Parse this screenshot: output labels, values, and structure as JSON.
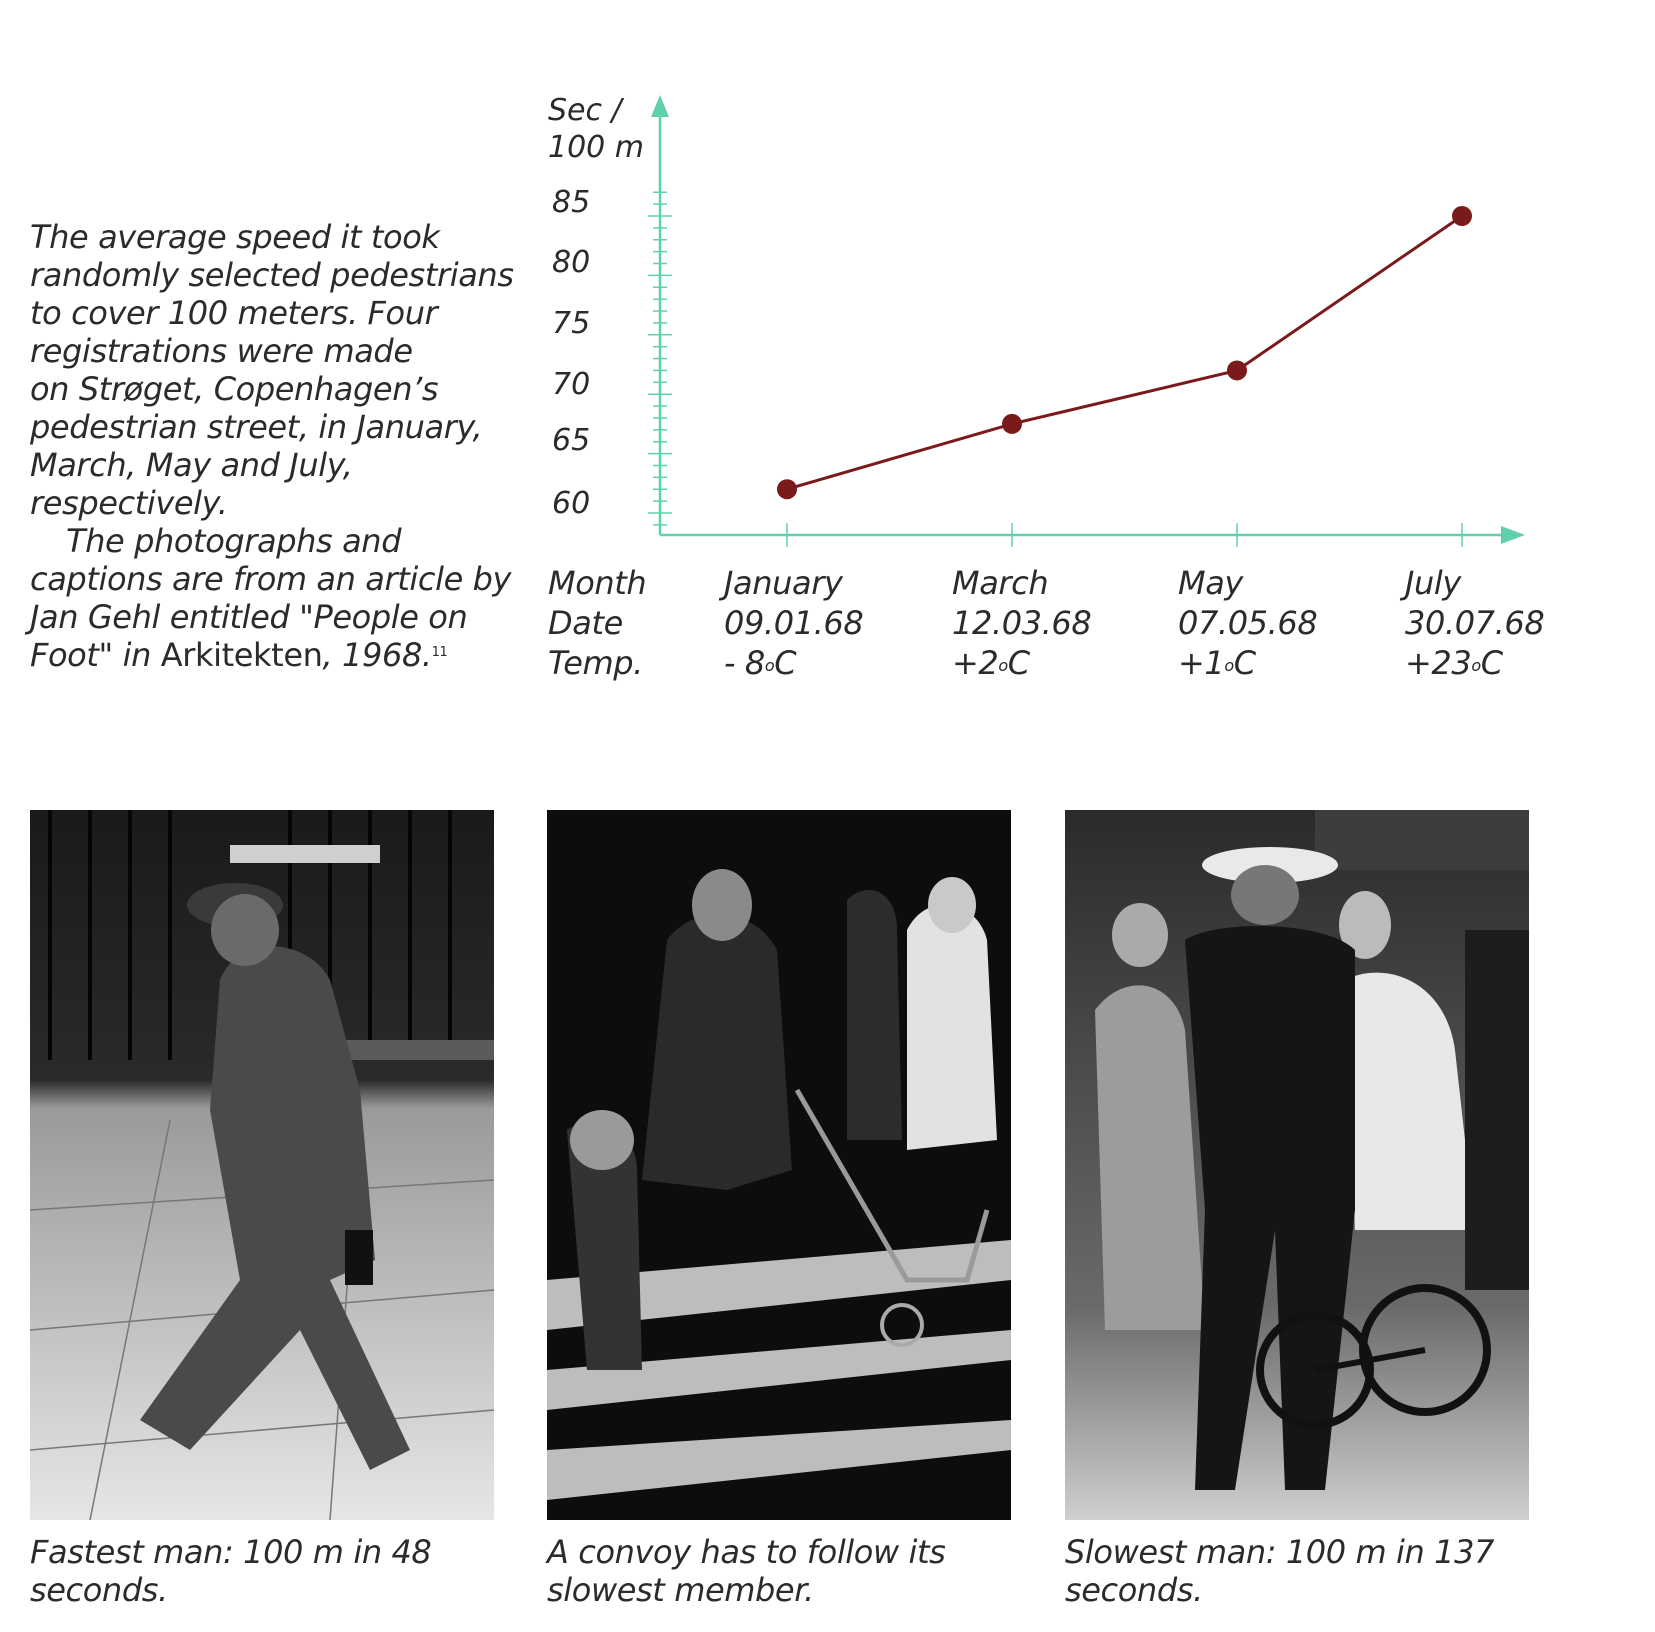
{
  "intro": {
    "lines": [
      "The average speed it took",
      "randomly selected pedestrians",
      "to cover 100 meters. Four",
      "registrations were made",
      "on Strøget, Copenhagen’s",
      "pedestrian street, in January,",
      "March, May and July,",
      "respectively."
    ],
    "second_lines": [
      "The photographs and",
      "captions are from an article by",
      "Jan Gehl entitled \"People on"
    ],
    "last_a": "Foot\" in ",
    "last_b": "Arkitekten",
    "last_c": ", 1968.",
    "footnote": "11"
  },
  "chart_data": {
    "type": "line",
    "ylabel_line1": "Sec /",
    "ylabel_line2": "100 m",
    "y_ticks": [
      60,
      65,
      70,
      75,
      80,
      85
    ],
    "categories": [
      "January",
      "March",
      "May",
      "July"
    ],
    "values": [
      62,
      67.5,
      72,
      85
    ],
    "ylim": [
      60,
      85
    ],
    "grid": false,
    "colors": {
      "axis": "#5fd1a8",
      "line": "#7a1a1a"
    },
    "row_labels": [
      "Month",
      "Date",
      "Temp."
    ],
    "dates": [
      "09.01.68",
      "12.03.68",
      "07.05.68",
      "30.07.68"
    ],
    "temps": [
      "- 8",
      "+2",
      "+1",
      "+23"
    ],
    "degree_sym": "o",
    "temp_unit": "C"
  },
  "photos": [
    {
      "caption_l1": "Fastest man: 100 m in 48",
      "caption_l2": "seconds."
    },
    {
      "caption_l1": "A convoy has to follow its",
      "caption_l2": "slowest member."
    },
    {
      "caption_l1": "Slowest man: 100 m in 137",
      "caption_l2": "seconds."
    }
  ]
}
